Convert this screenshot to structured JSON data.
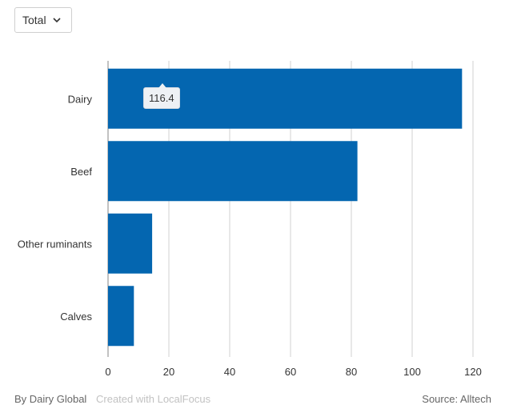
{
  "dropdown": {
    "selected": "Total"
  },
  "chart_data": {
    "type": "bar",
    "orientation": "horizontal",
    "categories": [
      "Dairy",
      "Beef",
      "Other ruminants",
      "Calves"
    ],
    "values": [
      116.4,
      82,
      14.5,
      8.5
    ],
    "xlim": [
      0,
      120
    ],
    "xticks": [
      0,
      20,
      40,
      60,
      80,
      100,
      120
    ],
    "grid": "vertical",
    "bar_color": "#0466b0",
    "tooltip": {
      "category": "Dairy",
      "value": "116.4"
    }
  },
  "footer": {
    "by": "By Dairy Global",
    "created": "Created with LocalFocus",
    "source": "Source:  Alltech"
  }
}
